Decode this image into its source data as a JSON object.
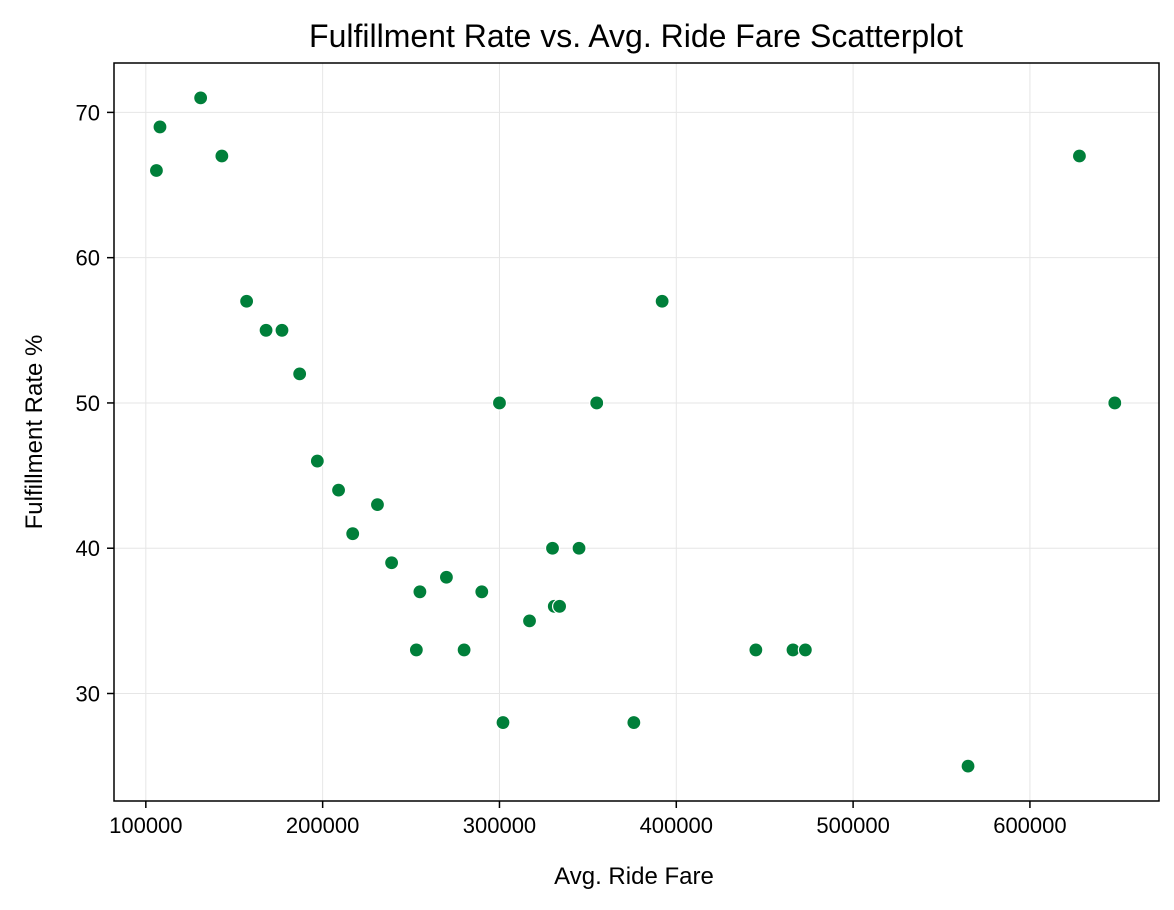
{
  "chart_data": {
    "type": "scatter",
    "title": "Fulfillment Rate vs. Avg. Ride Fare Scatterplot",
    "xlabel": "Avg. Ride Fare",
    "ylabel": "Fulfillment Rate %",
    "xlim": [
      82000,
      673000
    ],
    "ylim": [
      22.6,
      73.4
    ],
    "xticks": [
      100000,
      200000,
      300000,
      400000,
      500000,
      600000
    ],
    "xtick_labels": [
      "100000",
      "200000",
      "300000",
      "400000",
      "500000",
      "600000"
    ],
    "yticks": [
      30,
      40,
      50,
      60,
      70
    ],
    "ytick_labels": [
      "30",
      "40",
      "50",
      "60",
      "70"
    ],
    "grid": true,
    "marker_color": "#007f3a",
    "series": [
      {
        "points": [
          {
            "x": 106000,
            "y": 66
          },
          {
            "x": 108000,
            "y": 69
          },
          {
            "x": 131000,
            "y": 71
          },
          {
            "x": 143000,
            "y": 67
          },
          {
            "x": 157000,
            "y": 57
          },
          {
            "x": 168000,
            "y": 55
          },
          {
            "x": 177000,
            "y": 55
          },
          {
            "x": 187000,
            "y": 52
          },
          {
            "x": 197000,
            "y": 46
          },
          {
            "x": 209000,
            "y": 44
          },
          {
            "x": 217000,
            "y": 41
          },
          {
            "x": 231000,
            "y": 43
          },
          {
            "x": 239000,
            "y": 39
          },
          {
            "x": 253000,
            "y": 33
          },
          {
            "x": 255000,
            "y": 37
          },
          {
            "x": 270000,
            "y": 38
          },
          {
            "x": 280000,
            "y": 33
          },
          {
            "x": 290000,
            "y": 37
          },
          {
            "x": 300000,
            "y": 50
          },
          {
            "x": 302000,
            "y": 28
          },
          {
            "x": 317000,
            "y": 35
          },
          {
            "x": 330000,
            "y": 40
          },
          {
            "x": 331000,
            "y": 36
          },
          {
            "x": 334000,
            "y": 36
          },
          {
            "x": 345000,
            "y": 40
          },
          {
            "x": 355000,
            "y": 50
          },
          {
            "x": 376000,
            "y": 28
          },
          {
            "x": 392000,
            "y": 57
          },
          {
            "x": 445000,
            "y": 33
          },
          {
            "x": 466000,
            "y": 33
          },
          {
            "x": 473000,
            "y": 33
          },
          {
            "x": 565000,
            "y": 25
          },
          {
            "x": 628000,
            "y": 67
          },
          {
            "x": 648000,
            "y": 50
          }
        ]
      }
    ]
  }
}
